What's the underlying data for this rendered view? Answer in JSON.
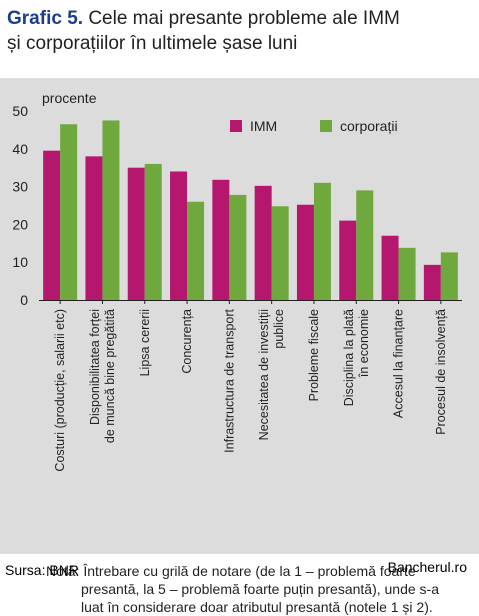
{
  "title": {
    "tag": "Grafic 5.",
    "line1": "Cele mai presante probleme ale IMM",
    "line2": "și corporațiilor în ultimele șase luni"
  },
  "chart_data": {
    "type": "bar",
    "ylabel": "procente",
    "ylim": [
      0,
      50
    ],
    "yticks": [
      0,
      10,
      20,
      30,
      40,
      50
    ],
    "grid": false,
    "legend_position": "top-right",
    "categories": [
      [
        "Costuri (producție, salarii etc)"
      ],
      [
        "Disponibilitatea forței",
        "de muncă bine pregătită"
      ],
      [
        "Lipsa cererii"
      ],
      [
        "Concurența"
      ],
      [
        "Infrastructura de transport"
      ],
      [
        "Necesitatea de investiții",
        "publice"
      ],
      [
        "Probleme fiscale"
      ],
      [
        "Disciplina la plată",
        "în economie"
      ],
      [
        "Accesul la finanțare"
      ],
      [
        "Procesul de insolvență"
      ]
    ],
    "series": [
      {
        "name": "IMM",
        "color": "#b5176e",
        "values": [
          39.5,
          38,
          35,
          34,
          31.8,
          30.2,
          25.2,
          21,
          17,
          9.3
        ]
      },
      {
        "name": "corporații",
        "color": "#6fa83c",
        "values": [
          46.5,
          47.5,
          36,
          26,
          27.8,
          24.8,
          31,
          29,
          13.8,
          12.6
        ]
      }
    ]
  },
  "note": {
    "line1": "Notă: Întrebare cu grilă de notare (de la 1 – problemă foarte",
    "line2": "presantă, la 5 – problemă foarte puțin presantă), unde s-a",
    "line3": "luat în considerare doar atributul presantă (notele 1 și 2)."
  },
  "source": "Sursa: BNR",
  "brand": "Bancherul.ro"
}
